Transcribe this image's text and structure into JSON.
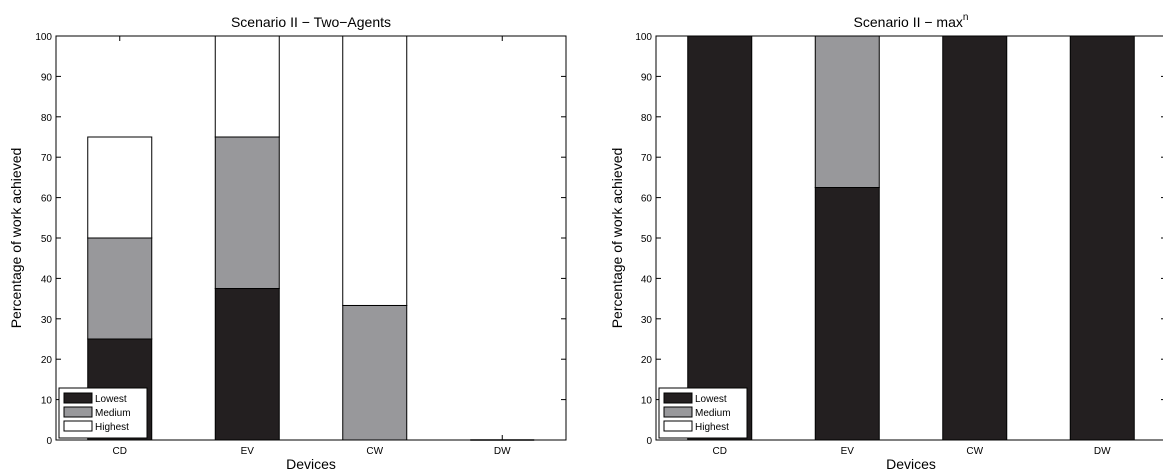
{
  "chart_data": [
    {
      "type": "bar",
      "stacked": true,
      "title": "Scenario II − Two−Agents",
      "xlabel": "Devices",
      "ylabel": "Percentage of work achieved",
      "ylim": [
        0,
        100
      ],
      "yticks": [
        0,
        10,
        20,
        30,
        40,
        50,
        60,
        70,
        80,
        90,
        100
      ],
      "categories": [
        "CD",
        "EV",
        "CW",
        "DW"
      ],
      "series": [
        {
          "name": "Lowest",
          "color": "#231f20",
          "values": [
            25,
            37.5,
            0,
            0
          ]
        },
        {
          "name": "Medium",
          "color": "#98989b",
          "values": [
            25,
            37.5,
            33.3,
            0
          ]
        },
        {
          "name": "Highest",
          "color": "#ffffff",
          "values": [
            25,
            25,
            66.7,
            0
          ]
        }
      ],
      "legend": "bottom-left",
      "grid": false
    },
    {
      "type": "bar",
      "stacked": true,
      "title": "Scenario II −  max",
      "title_sup": "n",
      "xlabel": "Devices",
      "ylabel": "Percentage of work achieved",
      "ylim": [
        0,
        100
      ],
      "yticks": [
        0,
        10,
        20,
        30,
        40,
        50,
        60,
        70,
        80,
        90,
        100
      ],
      "categories": [
        "CD",
        "EV",
        "CW",
        "DW"
      ],
      "series": [
        {
          "name": "Lowest",
          "color": "#231f20",
          "values": [
            100,
            62.5,
            100,
            100
          ]
        },
        {
          "name": "Medium",
          "color": "#98989b",
          "values": [
            0,
            37.5,
            0,
            0
          ]
        },
        {
          "name": "Highest",
          "color": "#ffffff",
          "values": [
            0,
            0,
            0,
            0
          ]
        }
      ],
      "legend": "bottom-left",
      "grid": false
    }
  ]
}
